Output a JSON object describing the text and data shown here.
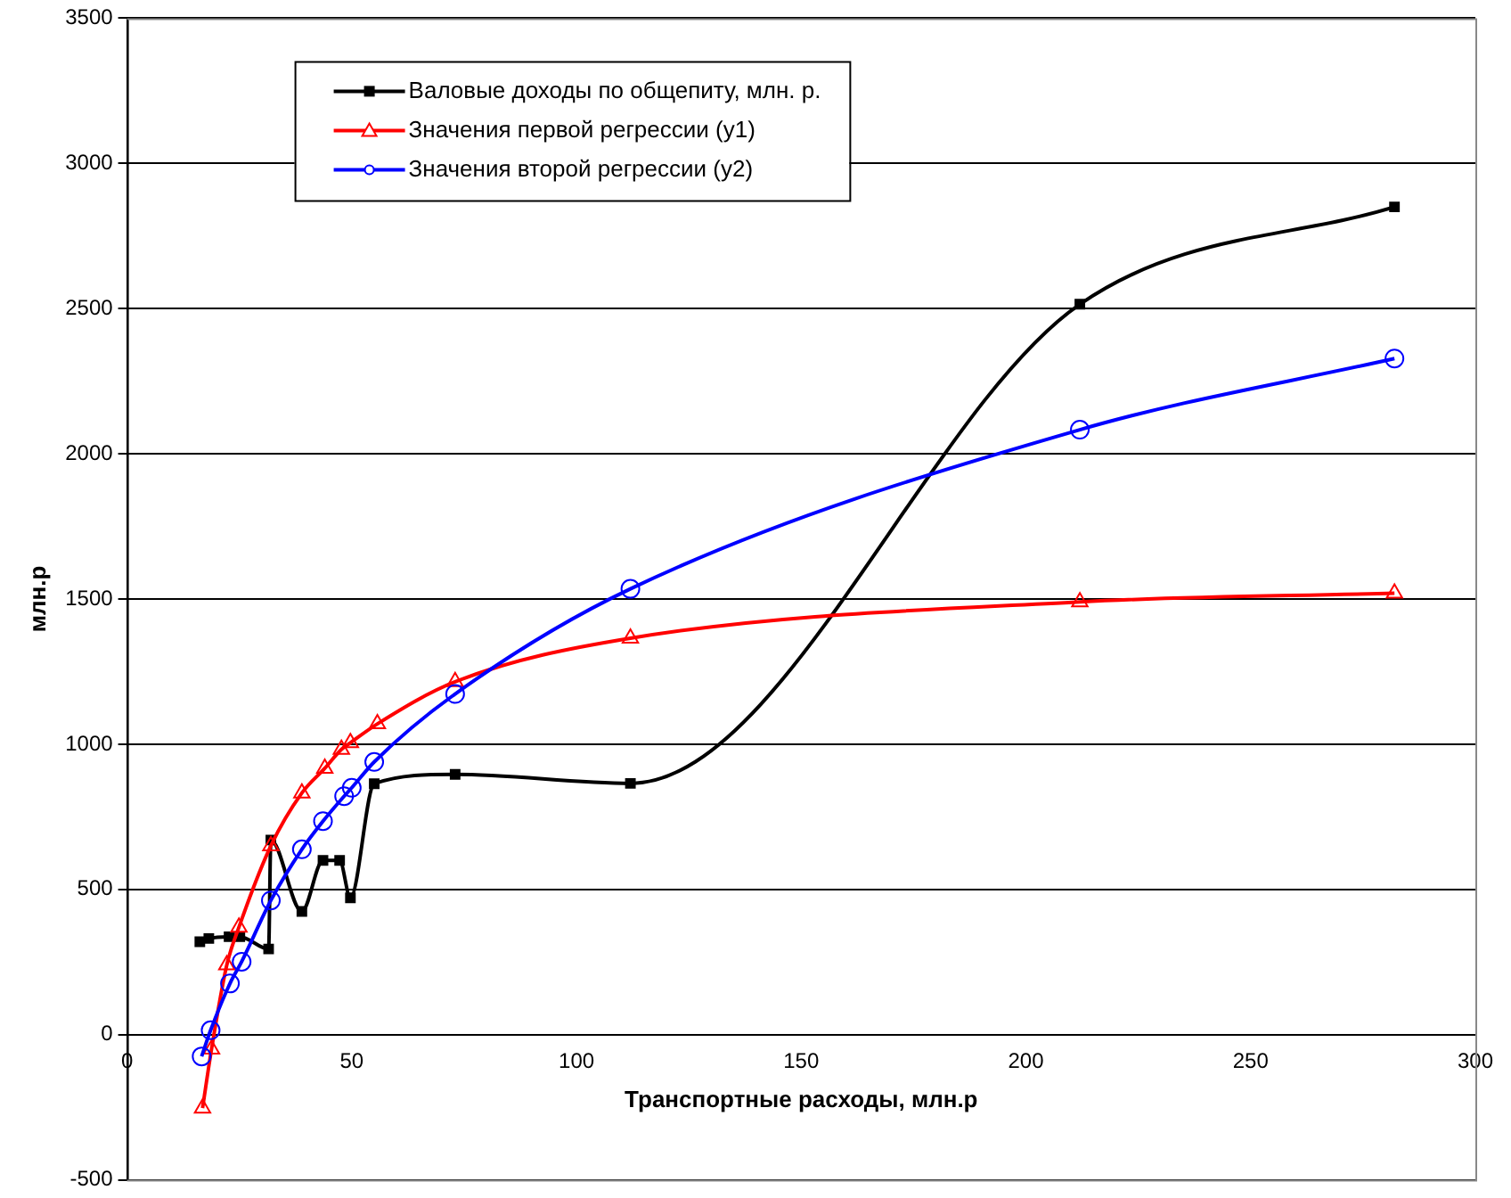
{
  "chart_data": {
    "type": "line",
    "xlabel": "Транспортные расходы, млн.р",
    "ylabel": "млн.р",
    "xlim": [
      0,
      300
    ],
    "xticks": [
      0,
      50,
      100,
      150,
      200,
      250,
      300
    ],
    "ylim": [
      -500,
      3500
    ],
    "yticks": [
      -500,
      0,
      500,
      1000,
      1500,
      2000,
      2500,
      3000,
      3500
    ],
    "grid": "y",
    "legend": "top left",
    "series": [
      {
        "name": "Валовые доходы по общепиту, млн. р.",
        "color": "#000000",
        "marker": "square",
        "x": [
          16.2,
          18.2,
          22.7,
          25.1,
          31.5,
          32,
          38.9,
          43.6,
          47.3,
          49.7,
          55,
          73,
          112,
          212,
          282
        ],
        "values": [
          320,
          331,
          337,
          337,
          295,
          670,
          424,
          600,
          600,
          471,
          864,
          896,
          865,
          2515,
          2850
        ]
      },
      {
        "name": "Значения первой регрессии (y1)",
        "color": "#ff0000",
        "marker": "triangle",
        "x": [
          16.8,
          18.8,
          22.2,
          24.9,
          32,
          38.9,
          44,
          47.7,
          49.7,
          55.7,
          73,
          112,
          212,
          282
        ],
        "values": [
          -253,
          -50,
          240,
          370,
          650,
          832,
          917,
          982,
          1005,
          1070,
          1215,
          1365,
          1490,
          1520
        ]
      },
      {
        "name": "Значения второй регрессии (y2)",
        "color": "#0000ff",
        "marker": "circle",
        "x": [
          16.6,
          18.6,
          22.9,
          25.5,
          32,
          38.9,
          43.6,
          48.3,
          50,
          55,
          73,
          112,
          212,
          282
        ],
        "values": [
          -75,
          15,
          176,
          251,
          462,
          638,
          735,
          821,
          850,
          939,
          1173,
          1535,
          2083,
          2328
        ]
      }
    ]
  }
}
